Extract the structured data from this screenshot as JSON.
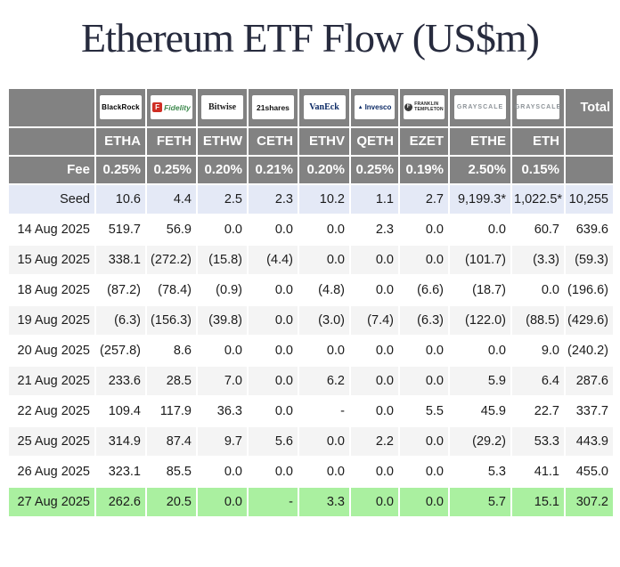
{
  "title": "Ethereum ETF Flow (US$m)",
  "chart_data": {
    "type": "table",
    "title": "Ethereum ETF Flow (US$m)",
    "issuers": [
      {
        "name": "BlackRock",
        "logo": "blackrock"
      },
      {
        "name": "Fidelity",
        "logo": "fidelity"
      },
      {
        "name": "Bitwise",
        "logo": "bitwise"
      },
      {
        "name": "21shares",
        "logo": "21shares"
      },
      {
        "name": "VanEck",
        "logo": "vaneck"
      },
      {
        "name": "Invesco",
        "logo": "invesco"
      },
      {
        "name": "FRANKLIN TEMPLETON",
        "logo": "franklin-templeton"
      },
      {
        "name": "GRAYSCALE",
        "logo": "grayscale"
      },
      {
        "name": "GRAYSCALE",
        "logo": "grayscale"
      }
    ],
    "total_label": "Total",
    "tickers": [
      "ETHA",
      "FETH",
      "ETHW",
      "CETH",
      "ETHV",
      "QETH",
      "EZET",
      "ETHE",
      "ETH"
    ],
    "fee_label": "Fee",
    "fees": [
      "0.25%",
      "0.25%",
      "0.20%",
      "0.21%",
      "0.20%",
      "0.25%",
      "0.19%",
      "2.50%",
      "0.15%"
    ],
    "seed_label": "Seed",
    "seed_values": [
      "10.6",
      "4.4",
      "2.5",
      "2.3",
      "10.2",
      "1.1",
      "2.7",
      "9,199.3*",
      "1,022.5*",
      "10,255"
    ],
    "rows": [
      {
        "date": "14 Aug 2025",
        "values": [
          "519.7",
          "56.9",
          "0.0",
          "0.0",
          "0.0",
          "2.3",
          "0.0",
          "0.0",
          "60.7",
          "639.6"
        ],
        "highlight": false
      },
      {
        "date": "15 Aug 2025",
        "values": [
          "338.1",
          "(272.2)",
          "(15.8)",
          "(4.4)",
          "0.0",
          "0.0",
          "0.0",
          "(101.7)",
          "(3.3)",
          "(59.3)"
        ],
        "highlight": false
      },
      {
        "date": "18 Aug 2025",
        "values": [
          "(87.2)",
          "(78.4)",
          "(0.9)",
          "0.0",
          "(4.8)",
          "0.0",
          "(6.6)",
          "(18.7)",
          "0.0",
          "(196.6)"
        ],
        "highlight": false
      },
      {
        "date": "19 Aug 2025",
        "values": [
          "(6.3)",
          "(156.3)",
          "(39.8)",
          "0.0",
          "(3.0)",
          "(7.4)",
          "(6.3)",
          "(122.0)",
          "(88.5)",
          "(429.6)"
        ],
        "highlight": false
      },
      {
        "date": "20 Aug 2025",
        "values": [
          "(257.8)",
          "8.6",
          "0.0",
          "0.0",
          "0.0",
          "0.0",
          "0.0",
          "0.0",
          "9.0",
          "(240.2)"
        ],
        "highlight": false
      },
      {
        "date": "21 Aug 2025",
        "values": [
          "233.6",
          "28.5",
          "7.0",
          "0.0",
          "6.2",
          "0.0",
          "0.0",
          "5.9",
          "6.4",
          "287.6"
        ],
        "highlight": false
      },
      {
        "date": "22 Aug 2025",
        "values": [
          "109.4",
          "117.9",
          "36.3",
          "0.0",
          "-",
          "0.0",
          "5.5",
          "45.9",
          "22.7",
          "337.7"
        ],
        "highlight": false
      },
      {
        "date": "25 Aug 2025",
        "values": [
          "314.9",
          "87.4",
          "9.7",
          "5.6",
          "0.0",
          "2.2",
          "0.0",
          "(29.2)",
          "53.3",
          "443.9"
        ],
        "highlight": false
      },
      {
        "date": "26 Aug 2025",
        "values": [
          "323.1",
          "85.5",
          "0.0",
          "0.0",
          "0.0",
          "0.0",
          "0.0",
          "5.3",
          "41.1",
          "455.0"
        ],
        "highlight": false
      },
      {
        "date": "27 Aug 2025",
        "values": [
          "262.6",
          "20.5",
          "0.0",
          "-",
          "3.3",
          "0.0",
          "0.0",
          "5.7",
          "15.1",
          "307.2"
        ],
        "highlight": true
      }
    ]
  },
  "colors": {
    "header_bg": "#828282",
    "header_text": "#ffffff",
    "seed_row_bg": "#e4e9f6",
    "alt_row_bg": "#f4f4f4",
    "highlight_row_bg": "#aaf0a0",
    "negative_text": "#c7544f",
    "title_text": "#272b3e"
  }
}
